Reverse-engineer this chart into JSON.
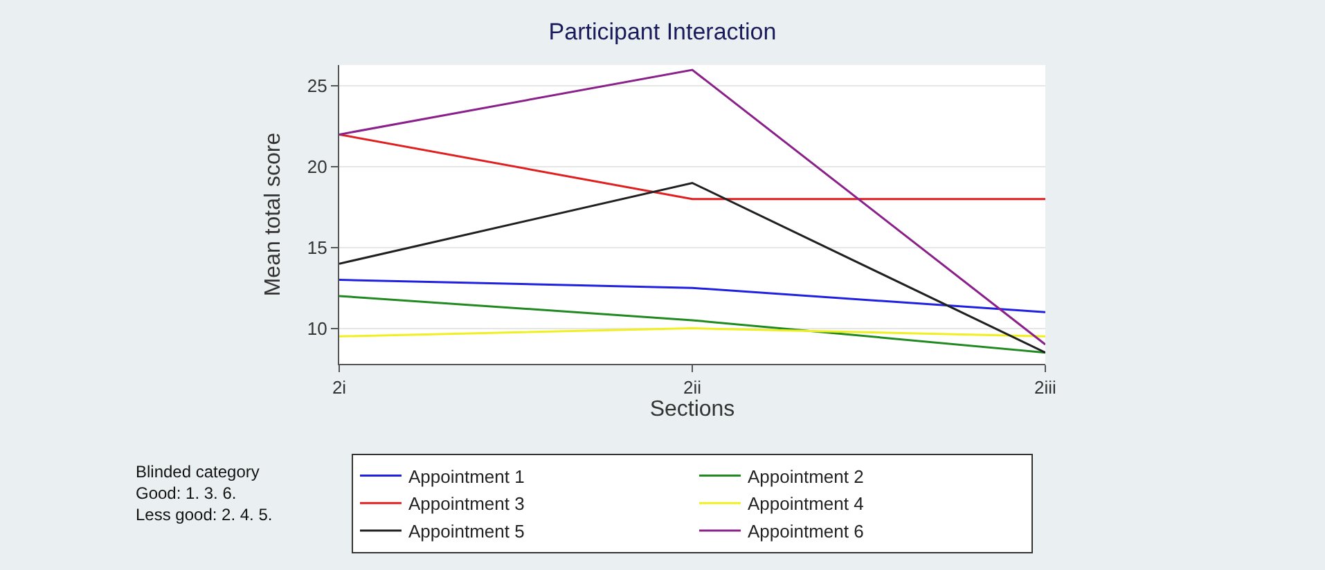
{
  "chart_data": {
    "type": "line",
    "title": "Participant Interaction",
    "xlabel": "Sections",
    "ylabel": "Mean total score",
    "categories": [
      "2i",
      "2ii",
      "2iii"
    ],
    "series": [
      {
        "name": "Appointment 1",
        "color": "#2020e0",
        "values": [
          13,
          12.5,
          11
        ]
      },
      {
        "name": "Appointment 2",
        "color": "#208a20",
        "values": [
          12,
          10.5,
          8.5
        ]
      },
      {
        "name": "Appointment 3",
        "color": "#e02020",
        "values": [
          22,
          18,
          18
        ]
      },
      {
        "name": "Appointment 4",
        "color": "#f0f020",
        "values": [
          9.5,
          10,
          9.5
        ]
      },
      {
        "name": "Appointment 5",
        "color": "#202020",
        "values": [
          14,
          19,
          8.5
        ]
      },
      {
        "name": "Appointment 6",
        "color": "#8a208a",
        "values": [
          22,
          26,
          9
        ]
      }
    ],
    "ylim": [
      7.8,
      26.3
    ],
    "yticks": [
      10,
      15,
      20,
      25
    ],
    "grid": "y",
    "legend": "bottom",
    "marker": "none",
    "line_style": "solid",
    "annotations": [
      "Blinded category\nGood: 1. 3. 6.\nLess good: 2. 4. 5."
    ]
  }
}
